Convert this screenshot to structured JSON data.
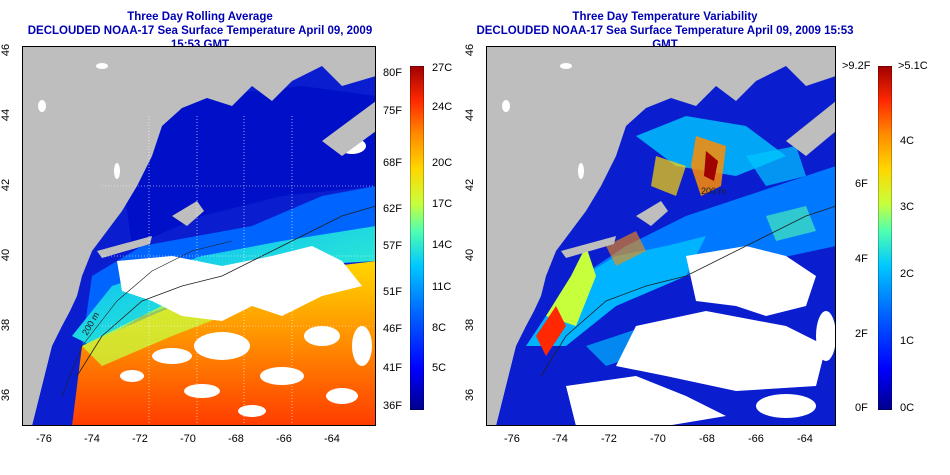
{
  "left": {
    "title_line1": "Three Day Rolling Average",
    "title_line2": "DECLOUDED NOAA-17 Sea Surface Temperature April 09, 2009 15:53 GMT",
    "lon_ticks": [
      "-76",
      "-74",
      "-72",
      "-70",
      "-68",
      "-66",
      "-64"
    ],
    "lat_ticks": [
      "46",
      "44",
      "42",
      "40",
      "38",
      "36"
    ],
    "colorbar_f": [
      "80F",
      "75F",
      "68F",
      "62F",
      "57F",
      "51F",
      "46F",
      "41F",
      "36F"
    ],
    "colorbar_c": [
      "27C",
      "24C",
      "20C",
      "17C",
      "14C",
      "11C",
      "8C",
      "5C"
    ],
    "contour_label": "200 m"
  },
  "right": {
    "title_line1": "Three Day Temperature Variability",
    "title_line2": "DECLOUDED NOAA-17 Sea Surface Temperature April 09, 2009 15:53 GMT",
    "lon_ticks": [
      "-76",
      "-74",
      "-72",
      "-70",
      "-68",
      "-66",
      "-64"
    ],
    "lat_ticks": [
      "46",
      "44",
      "42",
      "40",
      "38",
      "36"
    ],
    "colorbar_f": [
      ">9.2F",
      "6F",
      "4F",
      "2F",
      "0F"
    ],
    "colorbar_c": [
      ">5.1C",
      "4C",
      "3C",
      "2C",
      "1C",
      "0C"
    ],
    "contour_label": "200 m"
  },
  "colors": {
    "title": "#0000b4",
    "land": "#bebebe",
    "cloud": "#ffffff",
    "scale": [
      "#00008c",
      "#0000ff",
      "#0064ff",
      "#00c8ff",
      "#50ffb0",
      "#c8ff3c",
      "#ffd700",
      "#ff8c00",
      "#ff2800",
      "#a00000"
    ]
  }
}
